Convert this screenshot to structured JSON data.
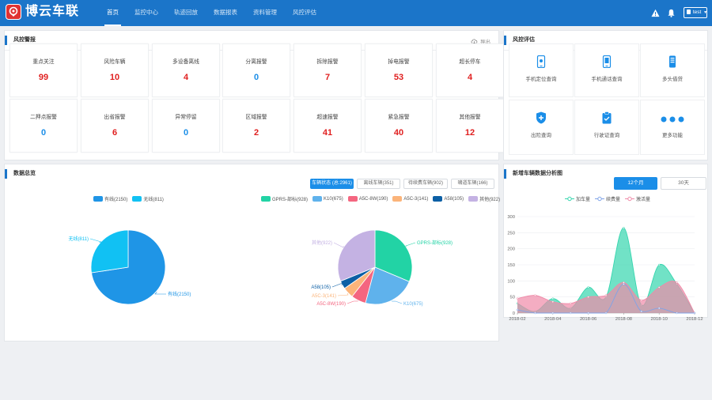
{
  "app": {
    "title": "博云车联"
  },
  "nav": [
    {
      "label": "首页",
      "active": true
    },
    {
      "label": "监控中心",
      "active": false
    },
    {
      "label": "轨迹回放",
      "active": false
    },
    {
      "label": "数据报表",
      "active": false
    },
    {
      "label": "资料管理",
      "active": false
    },
    {
      "label": "风控评估",
      "active": false
    }
  ],
  "user": {
    "name": "test"
  },
  "alarm_panel": {
    "title": "风控警报",
    "export_label": "导出",
    "cards": [
      {
        "label": "重点关注",
        "value": "99",
        "color": "#e02020"
      },
      {
        "label": "风险车辆",
        "value": "10",
        "color": "#e02020"
      },
      {
        "label": "多设备离线",
        "value": "4",
        "color": "#e02020"
      },
      {
        "label": "分离报警",
        "value": "0",
        "color": "#1b8ee8"
      },
      {
        "label": "拆除报警",
        "value": "7",
        "color": "#e02020"
      },
      {
        "label": "掉电报警",
        "value": "53",
        "color": "#e02020"
      },
      {
        "label": "超长停车",
        "value": "4",
        "color": "#e02020"
      },
      {
        "label": "二押点报警",
        "value": "0",
        "color": "#1b8ee8"
      },
      {
        "label": "出省报警",
        "value": "6",
        "color": "#e02020"
      },
      {
        "label": "异常停留",
        "value": "0",
        "color": "#1b8ee8"
      },
      {
        "label": "区域报警",
        "value": "2",
        "color": "#e02020"
      },
      {
        "label": "超速报警",
        "value": "41",
        "color": "#e02020"
      },
      {
        "label": "紧急报警",
        "value": "40",
        "color": "#e02020"
      },
      {
        "label": "其他报警",
        "value": "12",
        "color": "#e02020"
      }
    ]
  },
  "risk_panel": {
    "title": "风控评估",
    "items": [
      {
        "label": "手机定位查询",
        "icon": "phone-location-icon"
      },
      {
        "label": "手机通话查询",
        "icon": "phone-call-icon"
      },
      {
        "label": "多头借贷",
        "icon": "multi-loan-icon"
      },
      {
        "label": "出险查询",
        "icon": "insurance-shield-icon"
      },
      {
        "label": "行驶证查询",
        "icon": "license-clipboard-icon"
      },
      {
        "label": "更多功能",
        "icon": "more-dots-icon"
      }
    ]
  },
  "overview_panel": {
    "title": "数据总览",
    "filters": [
      {
        "label": "车辆状态 (总:2961)",
        "active": true
      },
      {
        "label": "离线车辆(351)",
        "active": false
      },
      {
        "label": "待续费车辆(902)",
        "active": false
      },
      {
        "label": "啸道车辆(166)",
        "active": false
      }
    ]
  },
  "trend_panel": {
    "title": "新增车辆数据分析图",
    "tabs": [
      {
        "label": "12个月",
        "active": true
      },
      {
        "label": "30天",
        "active": false
      }
    ]
  },
  "chart_data": [
    {
      "type": "pie",
      "legend_position": "top",
      "labels": [
        "有线",
        "无线"
      ],
      "values": [
        2150,
        811
      ],
      "display": [
        "有线(2150)",
        "无线(811)"
      ],
      "colors": [
        "#1f95e6",
        "#11c1f3"
      ]
    },
    {
      "type": "pie",
      "legend_position": "top",
      "labels": [
        "GPRS-部标",
        "K10",
        "A5C-8W",
        "A5C-3",
        "A58",
        "其他"
      ],
      "values": [
        928,
        675,
        190,
        141,
        105,
        922
      ],
      "display": [
        "GPRS-部标(928)",
        "K10(675)",
        "A5C-8W(190)",
        "A5C-3(141)",
        "A58(105)",
        "其他(922)"
      ],
      "colors": [
        "#22d3a5",
        "#5fb2ec",
        "#f46680",
        "#fbb47a",
        "#0c5fa5",
        "#c4b2e3"
      ]
    },
    {
      "type": "area",
      "legend_position": "top",
      "series": [
        {
          "name": "加车量",
          "color": "#35d5ae",
          "values": [
            30,
            5,
            45,
            15,
            80,
            50,
            265,
            25,
            150,
            90,
            0
          ]
        },
        {
          "name": "续费量",
          "color": "#7fa3e8",
          "values": [
            10,
            0,
            0,
            0,
            0,
            0,
            90,
            5,
            15,
            0,
            0
          ]
        },
        {
          "name": "激活量",
          "color": "#ef8aa8",
          "values": [
            45,
            55,
            35,
            30,
            50,
            55,
            95,
            40,
            80,
            95,
            0
          ]
        }
      ],
      "x": [
        "2018-02",
        "2018-03",
        "2018-04",
        "2018-05",
        "2018-06",
        "2018-07",
        "2018-08",
        "2018-09",
        "2018-10",
        "2018-11",
        "2018-12"
      ],
      "xticks": [
        "2018-02",
        "2018-04",
        "2018-06",
        "2018-08",
        "2018-10",
        "2018-12"
      ],
      "ylim": [
        0,
        300
      ],
      "yticks": [
        0,
        50,
        100,
        150,
        200,
        250,
        300
      ],
      "grid": true
    }
  ]
}
